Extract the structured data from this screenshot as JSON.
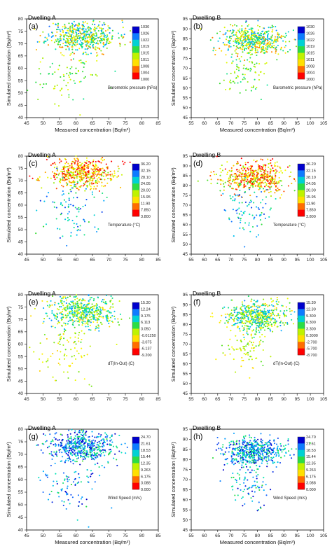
{
  "chart_data": [
    {
      "type": "scatter",
      "panel_label": "(a)",
      "title": "Dwelling A",
      "xlabel": "Measured concentration (Bq/m³)",
      "ylabel": "Simulated concentration (Bq/m³)",
      "xlim": [
        45,
        85
      ],
      "ylim": [
        40,
        80
      ],
      "xticks": [
        "45",
        "50",
        "55",
        "60",
        "65",
        "70",
        "75",
        "80",
        "85"
      ],
      "yticks": [
        "40",
        "45",
        "50",
        "55",
        "60",
        "65",
        "70",
        "75",
        "80"
      ],
      "colorbar": {
        "title": "Barometric pressure (hPa)",
        "ticks": [
          "1030",
          "1026",
          "1022",
          "1019",
          "1015",
          "1011",
          "1008",
          "1004",
          "1000"
        ]
      },
      "dwelling": "A",
      "color_mode": "pressure",
      "seed": 11
    },
    {
      "type": "scatter",
      "panel_label": "(b)",
      "title": "Dwelling B",
      "xlabel": "Measured concentration (Bq/m³)",
      "ylabel": "Simulated concentration (Bq/m³)",
      "xlim": [
        55,
        105
      ],
      "ylim": [
        45,
        95
      ],
      "xticks": [
        "55",
        "60",
        "65",
        "70",
        "75",
        "80",
        "85",
        "90",
        "95",
        "100",
        "105"
      ],
      "yticks": [
        "45",
        "50",
        "55",
        "60",
        "65",
        "70",
        "75",
        "80",
        "85",
        "90",
        "95"
      ],
      "colorbar": {
        "title": "Barometric pressure (hPa)",
        "ticks": [
          "1030",
          "1026",
          "1022",
          "1019",
          "1015",
          "1011",
          "1008",
          "1004",
          "1000"
        ]
      },
      "dwelling": "B",
      "color_mode": "pressure",
      "seed": 12
    },
    {
      "type": "scatter",
      "panel_label": "(c)",
      "title": "Dwelling A",
      "xlabel": "",
      "ylabel": "Simulated concentration (Bq/m³)",
      "xlim": [
        45,
        85
      ],
      "ylim": [
        40,
        80
      ],
      "xticks": [
        "45",
        "50",
        "55",
        "60",
        "65",
        "70",
        "75",
        "80",
        "85"
      ],
      "yticks": [
        "40",
        "45",
        "50",
        "55",
        "60",
        "65",
        "70",
        "75",
        "80"
      ],
      "colorbar": {
        "title": "Temperature (°C)",
        "ticks": [
          "36.20",
          "32.15",
          "28.10",
          "24.05",
          "20.00",
          "15.95",
          "11.90",
          "7.850",
          "3.800"
        ]
      },
      "dwelling": "A",
      "color_mode": "temperature",
      "seed": 21
    },
    {
      "type": "scatter",
      "panel_label": "(d)",
      "title": "Dwelling B",
      "xlabel": "",
      "ylabel": "Simulated concentration (Bq/m³)",
      "xlim": [
        55,
        105
      ],
      "ylim": [
        45,
        95
      ],
      "xticks": [
        "55",
        "60",
        "65",
        "70",
        "75",
        "80",
        "85",
        "90",
        "95",
        "100",
        "105"
      ],
      "yticks": [
        "45",
        "50",
        "55",
        "60",
        "65",
        "70",
        "75",
        "80",
        "85",
        "90",
        "95"
      ],
      "colorbar": {
        "title": "Temperature (°C)",
        "ticks": [
          "36.20",
          "32.15",
          "28.10",
          "24.05",
          "20.00",
          "15.95",
          "11.90",
          "7.850",
          "3.800"
        ]
      },
      "dwelling": "B",
      "color_mode": "temperature",
      "seed": 22
    },
    {
      "type": "scatter",
      "panel_label": "(e)",
      "title": "Dwelling A",
      "xlabel": "",
      "ylabel": "Simulated concentration (Bq/m³)",
      "xlim": [
        45,
        85
      ],
      "ylim": [
        40,
        80
      ],
      "xticks": [
        "45",
        "50",
        "55",
        "60",
        "65",
        "70",
        "75",
        "80",
        "85"
      ],
      "yticks": [
        "40",
        "45",
        "50",
        "55",
        "60",
        "65",
        "70",
        "75",
        "80"
      ],
      "colorbar": {
        "title": "dT(In-Out) (C)",
        "ticks": [
          "15.30",
          "12.24",
          "9.175",
          "6.113",
          "3.050",
          "-0.01250",
          "-3.075",
          "-6.137",
          "-9.200"
        ]
      },
      "dwelling": "A",
      "color_mode": "dt",
      "seed": 31
    },
    {
      "type": "scatter",
      "panel_label": "(f)",
      "title": "Dwelling B",
      "xlabel": "",
      "ylabel": "Simulated concentration (Bq/m³)",
      "xlim": [
        55,
        105
      ],
      "ylim": [
        45,
        95
      ],
      "xticks": [
        "55",
        "60",
        "65",
        "70",
        "75",
        "80",
        "85",
        "90",
        "95",
        "100",
        "105"
      ],
      "yticks": [
        "45",
        "50",
        "55",
        "60",
        "65",
        "70",
        "75",
        "80",
        "85",
        "90",
        "95"
      ],
      "colorbar": {
        "title": "dT(In-Out) (C)",
        "ticks": [
          "15.30",
          "12.30",
          "9.300",
          "6.300",
          "3.300",
          "0.3000",
          "-2.700",
          "-5.700",
          "-8.700"
        ]
      },
      "dwelling": "B",
      "color_mode": "dt",
      "seed": 32
    },
    {
      "type": "scatter",
      "panel_label": "(g)",
      "title": "Dwelling A",
      "xlabel": "Measured concentration (Bq/m³)",
      "ylabel": "Simulated concentration (Bq/m³)",
      "xlim": [
        45,
        85
      ],
      "ylim": [
        40,
        80
      ],
      "xticks": [
        "45",
        "50",
        "55",
        "60",
        "65",
        "70",
        "75",
        "80",
        "85"
      ],
      "yticks": [
        "40",
        "45",
        "50",
        "55",
        "60",
        "65",
        "70",
        "75",
        "80"
      ],
      "colorbar": {
        "title": "Wind Speed (m/s)",
        "ticks": [
          "24.70",
          "21.61",
          "18.53",
          "15.44",
          "12.35",
          "9.263",
          "6.175",
          "3.088",
          "0.000"
        ]
      },
      "dwelling": "A",
      "color_mode": "wind",
      "seed": 41
    },
    {
      "type": "scatter",
      "panel_label": "(h)",
      "title": "Dwelling B",
      "xlabel": "Measured concentration (Bq/m³)",
      "ylabel": "Simulated concentration (Bq/m³)",
      "xlim": [
        55,
        105
      ],
      "ylim": [
        45,
        95
      ],
      "xticks": [
        "55",
        "60",
        "65",
        "70",
        "75",
        "80",
        "85",
        "90",
        "95",
        "100",
        "105"
      ],
      "yticks": [
        "45",
        "50",
        "55",
        "60",
        "65",
        "70",
        "75",
        "80",
        "85",
        "90",
        "95"
      ],
      "colorbar": {
        "title": "Wind Speed (m/s)",
        "ticks": [
          "24.70",
          "21.61",
          "18.53",
          "15.44",
          "12.35",
          "9.263",
          "6.175",
          "3.088",
          "0.000"
        ]
      },
      "dwelling": "B",
      "color_mode": "wind",
      "seed": 42
    }
  ],
  "palette": [
    "#0000cc",
    "#1464ff",
    "#00b4ff",
    "#00e6b4",
    "#32dc32",
    "#b4f000",
    "#ffff00",
    "#ffb400",
    "#ff5000",
    "#ff0000"
  ]
}
